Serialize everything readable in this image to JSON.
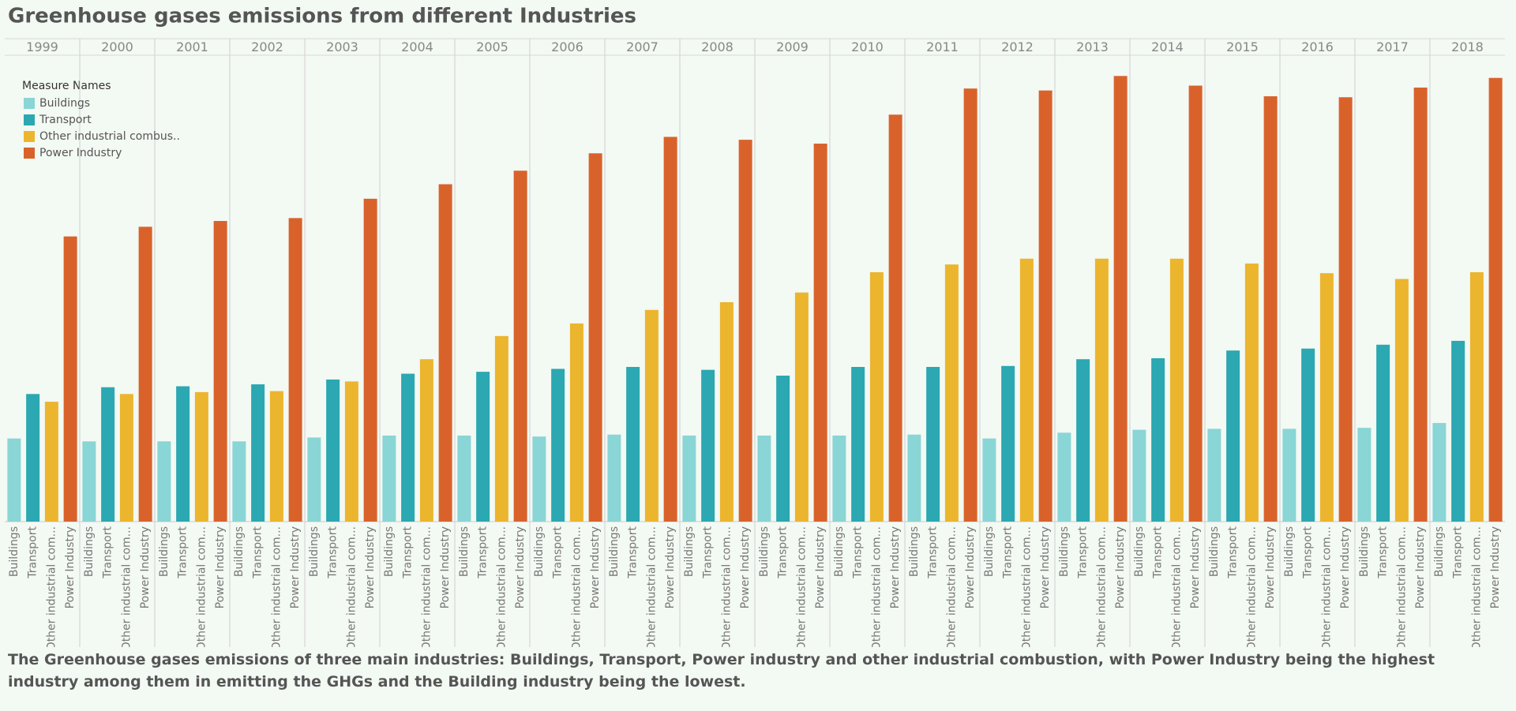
{
  "chart_data": {
    "type": "bar",
    "title": "Greenhouse gases emissions from different Industries",
    "legend_title": "Measure Names",
    "legend_position": "upper left",
    "categories": [
      "1999",
      "2000",
      "2001",
      "2002",
      "2003",
      "2004",
      "2005",
      "2006",
      "2007",
      "2008",
      "2009",
      "2010",
      "2011",
      "2012",
      "2013",
      "2014",
      "2015",
      "2016",
      "2017",
      "2018"
    ],
    "bar_labels": [
      "Buildings",
      "Transport",
      "Other industrial com...",
      "Power Industry"
    ],
    "series": [
      {
        "name": "Buildings",
        "color": "#8ad5d6",
        "values": [
          86,
          83,
          83,
          83,
          87,
          89,
          89,
          88,
          90,
          89,
          89,
          89,
          90,
          86,
          92,
          95,
          96,
          96,
          97,
          102
        ]
      },
      {
        "name": "Transport",
        "color": "#2ba8b1",
        "values": [
          132,
          139,
          140,
          142,
          147,
          153,
          155,
          158,
          160,
          157,
          151,
          160,
          160,
          161,
          168,
          169,
          177,
          179,
          183,
          187
        ]
      },
      {
        "name": "Other industrial combus..",
        "color": "#ecb52e",
        "values": [
          124,
          132,
          134,
          135,
          145,
          168,
          192,
          205,
          219,
          227,
          237,
          258,
          266,
          272,
          272,
          272,
          267,
          257,
          251,
          258
        ]
      },
      {
        "name": "Power Industry",
        "color": "#d9622b",
        "values": [
          295,
          305,
          311,
          314,
          334,
          349,
          363,
          381,
          398,
          395,
          391,
          421,
          448,
          446,
          461,
          451,
          440,
          439,
          449,
          459
        ]
      }
    ],
    "ylim": [
      0,
      480
    ],
    "caption": "The Greenhouse gases emissions of three main industries: Buildings, Transport, Power industry and other industrial combustion, with Power Industry being the highest industry among them in emitting the GHGs and the Building industry being the lowest."
  }
}
